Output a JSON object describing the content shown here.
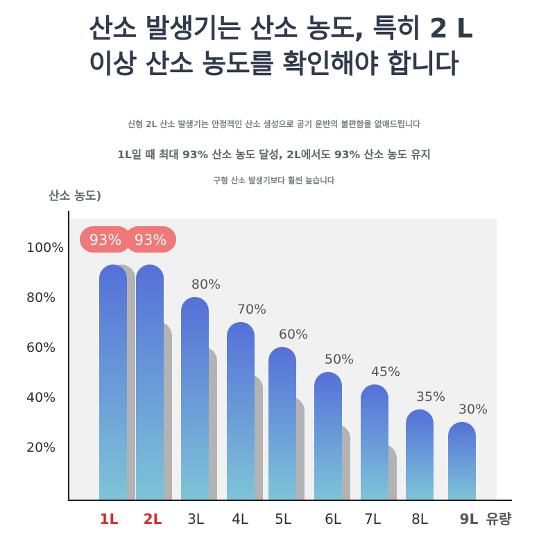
{
  "header": {
    "title": "산소 발생기는 산소 농도, 특히 2 L 이상 산소 농도를 확인해야 합니다",
    "subtitle_1": "신형 2L 산소 발생기는 안정적인 산소 생성으로 공기 운반의 불편함을 없애드립니다",
    "subtitle_2": "1L일 때 최대 93% 산소 농도 달성, 2L에서도 93% 산소 농도 유지",
    "subtitle_3": "구형 산소 발생기보다 훨씬 높습니다"
  },
  "colors": {
    "bar_top": "#5470d8",
    "bar_bottom": "#7ec4d8",
    "shadow_bar": "#b3b3b3",
    "badge": "#f07878",
    "highlight_label": "#d62b2b",
    "plot_background": "#f1f1f1"
  },
  "chart_data": {
    "type": "bar",
    "ylabel": "산소 농도)",
    "xlabel": "유량",
    "categories": [
      "1L",
      "2L",
      "3L",
      "4L",
      "5L",
      "6L",
      "7L",
      "8L",
      "9L"
    ],
    "highlighted_categories": [
      "1L",
      "2L"
    ],
    "series": [
      {
        "values": [
          93,
          93,
          80,
          70,
          60,
          50,
          45,
          35,
          30
        ]
      },
      {
        "values": [
          93,
          70,
          60,
          49,
          40,
          29,
          21,
          null,
          null
        ]
      }
    ],
    "value_labels": [
      "93%",
      "93%",
      "80%",
      "70%",
      "60%",
      "50%",
      "45%",
      "35%",
      "30%"
    ],
    "y_ticks": [
      "20%",
      "40%",
      "60%",
      "80%",
      "100%"
    ],
    "y_tick_values": [
      20,
      40,
      60,
      80,
      100
    ],
    "ylim": [
      0,
      100
    ],
    "grid": false,
    "legend": "none"
  }
}
